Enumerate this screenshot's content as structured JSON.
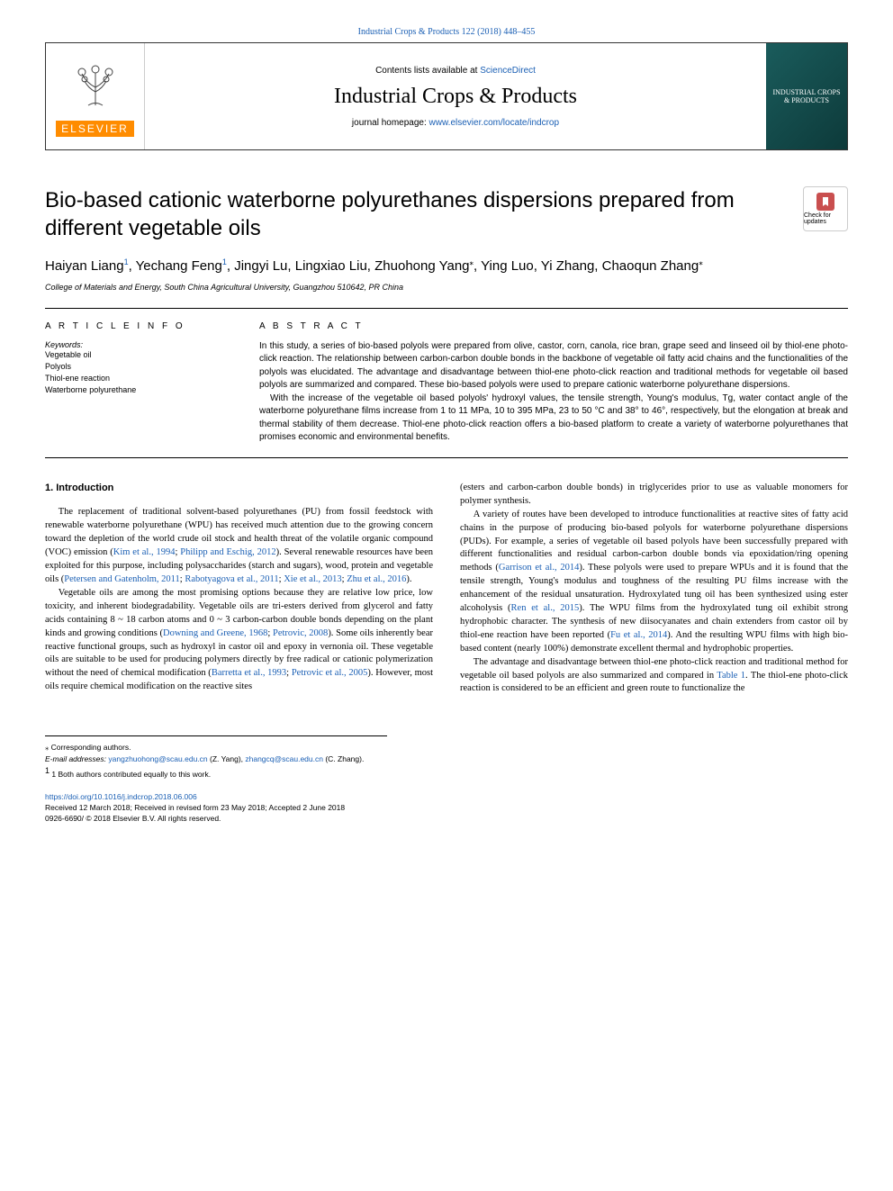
{
  "journal_ref": "Industrial Crops & Products 122 (2018) 448–455",
  "header": {
    "contents_prefix": "Contents lists available at ",
    "contents_link": "ScienceDirect",
    "journal_name": "Industrial Crops & Products",
    "homepage_prefix": "journal homepage: ",
    "homepage_link": "www.elsevier.com/locate/indcrop",
    "elsevier_label": "ELSEVIER",
    "cover_text": "INDUSTRIAL CROPS & PRODUCTS"
  },
  "title": "Bio-based cationic waterborne polyurethanes dispersions prepared from different vegetable oils",
  "check_updates_label": "Check for updates",
  "authors_html": "Haiyan Liang<span class='sup'>1</span>, Yechang Feng<span class='sup'>1</span>, Jingyi Lu, Lingxiao Liu, Zhuohong Yang<span class='sup-star'>⁎</span>, Ying Luo, Yi Zhang, Chaoqun Zhang<span class='sup-star'>⁎</span>",
  "affiliation": "College of Materials and Energy, South China Agricultural University, Guangzhou 510642, PR China",
  "article_info_label": "A R T I C L E  I N F O",
  "abstract_label": "A B S T R A C T",
  "keywords_label": "Keywords:",
  "keywords": [
    "Vegetable oil",
    "Polyols",
    "Thiol-ene reaction",
    "Waterborne polyurethane"
  ],
  "abstract": {
    "p1": "In this study, a series of bio-based polyols were prepared from olive, castor, corn, canola, rice bran, grape seed and linseed oil by thiol-ene photo-click reaction. The relationship between carbon-carbon double bonds in the backbone of vegetable oil fatty acid chains and the functionalities of the polyols was elucidated. The advantage and disadvantage between thiol-ene photo-click reaction and traditional methods for vegetable oil based polyols are summarized and compared. These bio-based polyols were used to prepare cationic waterborne polyurethane dispersions.",
    "p2": "With the increase of the vegetable oil based polyols' hydroxyl values, the tensile strength, Young's modulus, Tg, water contact angle of the waterborne polyurethane films increase from 1 to 11 MPa, 10 to 395 MPa, 23 to 50 °C and 38° to 46°, respectively, but the elongation at break and thermal stability of them decrease. Thiol-ene photo-click reaction offers a bio-based platform to create a variety of waterborne polyurethanes that promises economic and environmental benefits."
  },
  "colors": {
    "link": "#1a5fb4",
    "elsevier_orange": "#ff8c00",
    "cover_bg1": "#1a5c5c",
    "cover_bg2": "#0d3a3a",
    "check_icon": "#c94f4f"
  },
  "intro_heading": "1. Introduction",
  "body": {
    "left": {
      "p1_a": "The replacement of traditional solvent-based polyurethanes (PU) from fossil feedstock with renewable waterborne polyurethane (WPU) has received much attention due to the growing concern toward the depletion of the world crude oil stock and health threat of the volatile organic compound (VOC) emission (",
      "c1": "Kim et al., 1994",
      "p1_b": "; ",
      "c2": "Philipp and Eschig, 2012",
      "p1_c": "). Several renewable resources have been exploited for this purpose, including polysaccharides (starch and sugars), wood, protein and vegetable oils (",
      "c3": "Petersen and Gatenholm, 2011",
      "p1_d": "; ",
      "c4": "Rabotyagova et al., 2011",
      "p1_e": "; ",
      "c5": "Xie et al., 2013",
      "p1_f": "; ",
      "c6": "Zhu et al., 2016",
      "p1_g": ").",
      "p2_a": "Vegetable oils are among the most promising options because they are relative low price, low toxicity, and inherent biodegradability. Vegetable oils are tri-esters derived from glycerol and fatty acids containing 8 ~ 18 carbon atoms and 0 ~ 3 carbon-carbon double bonds depending on the plant kinds and growing conditions (",
      "c7": "Downing and Greene, 1968",
      "p2_b": "; ",
      "c8": "Petrovic, 2008",
      "p2_c": "). Some oils inherently bear reactive functional groups, such as hydroxyl in castor oil and epoxy in vernonia oil. These vegetable oils are suitable to be used for producing polymers directly by free radical or cationic polymerization without the need of chemical modification (",
      "c9": "Barretta et al., 1993",
      "p2_d": "; ",
      "c10": "Petrovic et al., 2005",
      "p2_e": "). However, most oils require chemical modification on the reactive sites"
    },
    "right": {
      "p1": "(esters and carbon-carbon double bonds) in triglycerides prior to use as valuable monomers for polymer synthesis.",
      "p2_a": "A variety of routes have been developed to introduce functionalities at reactive sites of fatty acid chains in the purpose of producing bio-based polyols for waterborne polyurethane dispersions (PUDs). For example, a series of vegetable oil based polyols have been successfully prepared with different functionalities and residual carbon-carbon double bonds via epoxidation/ring opening methods (",
      "c1": "Garrison et al., 2014",
      "p2_b": "). These polyols were used to prepare WPUs and it is found that the tensile strength, Young's modulus and toughness of the resulting PU films increase with the enhancement of the residual unsaturation. Hydroxylated tung oil has been synthesized using ester alcoholysis (",
      "c2": "Ren et al., 2015",
      "p2_c": "). The WPU films from the hydroxylated tung oil exhibit strong hydrophobic character. The synthesis of new diisocyanates and chain extenders from castor oil by thiol-ene reaction have been reported (",
      "c3": "Fu et al., 2014",
      "p2_d": "). And the resulting WPU films with high bio-based content (nearly 100%) demonstrate excellent thermal and hydrophobic properties.",
      "p3_a": "The advantage and disadvantage between thiol-ene photo-click reaction and traditional method for vegetable oil based polyols are also summarized and compared in ",
      "c4": "Table 1",
      "p3_b": ". The thiol-ene photo-click reaction is considered to be an efficient and green route to functionalize the"
    }
  },
  "footnotes": {
    "corr": "⁎ Corresponding authors.",
    "email_label": "E-mail addresses: ",
    "email1": "yangzhuohong@scau.edu.cn",
    "email1_who": " (Z. Yang), ",
    "email2": "zhangcq@scau.edu.cn",
    "email2_who": " (C. Zhang).",
    "equal": "1 Both authors contributed equally to this work."
  },
  "footer": {
    "doi": "https://doi.org/10.1016/j.indcrop.2018.06.006",
    "received": "Received 12 March 2018; Received in revised form 23 May 2018; Accepted 2 June 2018",
    "copyright": "0926-6690/ © 2018 Elsevier B.V. All rights reserved."
  }
}
